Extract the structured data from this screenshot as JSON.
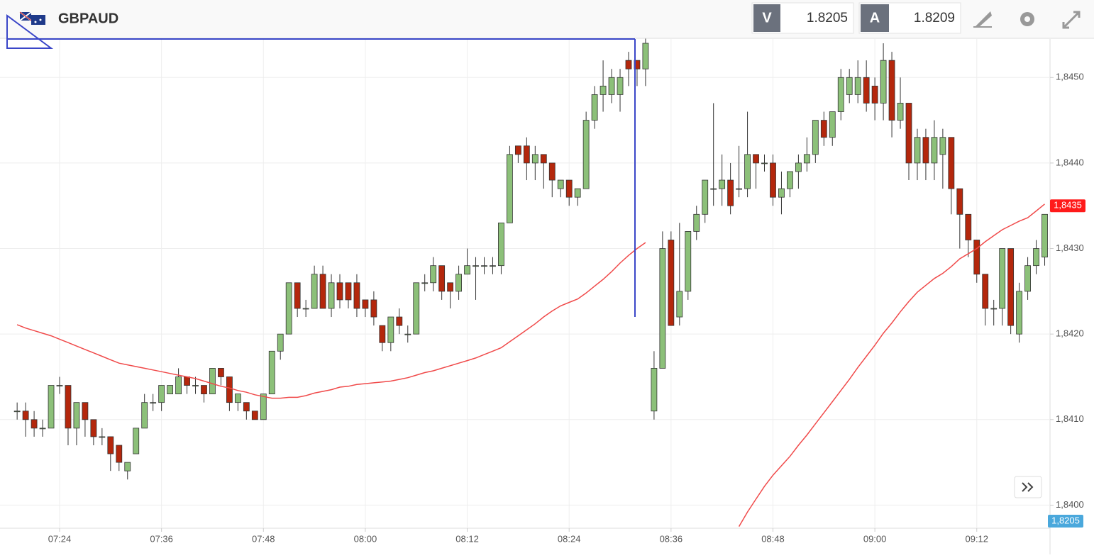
{
  "header": {
    "symbol": "GBPAUD",
    "bid_label": "V",
    "bid": 1.8205,
    "ask_label": "A",
    "ask": 1.8209
  },
  "chart_data": {
    "type": "candlestick",
    "categories": [
      null,
      null,
      null,
      null,
      null,
      "07:24",
      null,
      null,
      null,
      null,
      null,
      null,
      null,
      null,
      null,
      null,
      null,
      "07:36",
      null,
      null,
      null,
      null,
      null,
      null,
      null,
      null,
      null,
      null,
      null,
      "07:48",
      null,
      null,
      null,
      null,
      null,
      null,
      null,
      null,
      null,
      null,
      null,
      "08:00",
      null,
      null,
      null,
      null,
      null,
      null,
      null,
      null,
      null,
      null,
      null,
      "08:12",
      null,
      null,
      null,
      null,
      null,
      null,
      null,
      null,
      null,
      null,
      null,
      "08:24",
      null,
      null,
      null,
      null,
      null,
      null,
      null,
      null,
      null,
      null,
      null,
      "08:36",
      null,
      null,
      null,
      null,
      null,
      null,
      null,
      null,
      null,
      null,
      null,
      "08:48",
      null,
      null,
      null,
      null,
      null,
      null,
      null,
      null,
      null,
      null,
      null,
      "09:00",
      null,
      null,
      null,
      null,
      null,
      null,
      null,
      null,
      null,
      null,
      null,
      "09:12",
      null,
      null,
      null,
      null,
      null,
      null,
      null,
      null
    ],
    "open": [
      1.8411,
      1.8411,
      1.841,
      1.8409,
      1.8409,
      1.8414,
      1.8414,
      1.8409,
      1.8412,
      1.841,
      1.8408,
      1.8408,
      1.8407,
      1.8404,
      1.8406,
      1.8409,
      1.8412,
      1.8412,
      1.8413,
      1.8413,
      1.8415,
      1.8414,
      1.8414,
      1.8413,
      1.8416,
      1.8415,
      1.8412,
      1.8412,
      1.8411,
      1.841,
      1.8413,
      1.8418,
      1.842,
      1.8426,
      1.8423,
      1.8423,
      1.8427,
      1.8423,
      1.8426,
      1.8426,
      1.8426,
      1.8424,
      1.8424,
      1.8421,
      1.8419,
      1.8422,
      1.842,
      1.842,
      1.8426,
      1.8426,
      1.8428,
      1.8426,
      1.8425,
      1.8427,
      1.8428,
      1.8428,
      1.8428,
      1.8428,
      1.8433,
      1.8442,
      1.8442,
      1.844,
      1.8441,
      1.844,
      1.8437,
      1.8438,
      1.8436,
      1.8437,
      1.8445,
      1.8448,
      1.8448,
      1.8448,
      1.8452,
      1.8452,
      1.8451,
      1.8411,
      1.8416,
      1.8431,
      1.8422,
      1.8425,
      1.8432,
      1.8434,
      1.8437,
      1.8437,
      1.8438,
      1.8437,
      1.8437,
      1.8441,
      1.844,
      1.844,
      1.8436,
      1.8437,
      1.8439,
      1.844,
      1.8441,
      1.8445,
      1.8443,
      1.8446,
      1.8448,
      1.8448,
      1.845,
      1.8449,
      1.8447,
      1.8452,
      1.8445,
      1.8447,
      1.844,
      1.8443,
      1.844,
      1.8441,
      1.8443,
      1.8437,
      1.8434,
      1.8431,
      1.8427,
      1.8423,
      1.8423,
      1.843,
      1.842,
      1.8425,
      1.8428,
      1.8429
    ],
    "high": [
      1.8412,
      1.8412,
      1.8411,
      1.841,
      1.8414,
      1.8415,
      1.8414,
      1.8412,
      1.8412,
      1.841,
      1.8409,
      1.8408,
      1.8407,
      1.8405,
      1.8409,
      1.8413,
      1.8413,
      1.8414,
      1.8414,
      1.8416,
      1.8415,
      1.8415,
      1.8414,
      1.8416,
      1.8416,
      1.8415,
      1.8413,
      1.8412,
      1.8411,
      1.8413,
      1.8418,
      1.842,
      1.8426,
      1.8426,
      1.8424,
      1.8428,
      1.8428,
      1.8427,
      1.8427,
      1.8426,
      1.8427,
      1.8424,
      1.8425,
      1.8421,
      1.8422,
      1.8423,
      1.8421,
      1.8426,
      1.8427,
      1.8429,
      1.8428,
      1.8426,
      1.8428,
      1.843,
      1.8429,
      1.8429,
      1.8429,
      1.8433,
      1.8442,
      1.8442,
      1.8443,
      1.8442,
      1.8441,
      1.844,
      1.8438,
      1.8438,
      1.8437,
      1.8446,
      1.8449,
      1.8452,
      1.8451,
      1.8451,
      1.8453,
      1.8452,
      1.8455,
      1.8418,
      1.8432,
      1.8432,
      1.8433,
      1.8432,
      1.8435,
      1.8438,
      1.8447,
      1.8441,
      1.844,
      1.8442,
      1.8446,
      1.8441,
      1.8441,
      1.8441,
      1.8439,
      1.8439,
      1.8441,
      1.8443,
      1.8445,
      1.8446,
      1.8446,
      1.8451,
      1.8451,
      1.8452,
      1.8452,
      1.845,
      1.8454,
      1.8453,
      1.845,
      1.8447,
      1.8444,
      1.8444,
      1.8445,
      1.8444,
      1.8443,
      1.8437,
      1.8434,
      1.8431,
      1.8427,
      1.8424,
      1.843,
      1.843,
      1.8426,
      1.8429,
      1.8431,
      1.8434
    ],
    "low": [
      1.841,
      1.8408,
      1.8408,
      1.8408,
      1.8409,
      1.8413,
      1.8407,
      1.8407,
      1.8408,
      1.8407,
      1.8407,
      1.8404,
      1.8404,
      1.8403,
      1.8406,
      1.8409,
      1.8411,
      1.8411,
      1.8413,
      1.8413,
      1.8413,
      1.8413,
      1.8412,
      1.8413,
      1.8414,
      1.8411,
      1.8411,
      1.841,
      1.841,
      1.841,
      1.8413,
      1.8417,
      1.842,
      1.8422,
      1.8422,
      1.8423,
      1.8423,
      1.8422,
      1.8423,
      1.8423,
      1.8422,
      1.8422,
      1.8421,
      1.8418,
      1.8418,
      1.842,
      1.8419,
      1.842,
      1.8425,
      1.8425,
      1.8424,
      1.8423,
      1.8424,
      1.8427,
      1.8424,
      1.8427,
      1.8427,
      1.8427,
      1.8433,
      1.844,
      1.8438,
      1.8438,
      1.8437,
      1.8436,
      1.8436,
      1.8435,
      1.8435,
      1.8437,
      1.8444,
      1.8446,
      1.8447,
      1.8446,
      1.8449,
      1.8449,
      1.8449,
      1.841,
      1.8416,
      1.8421,
      1.8421,
      1.8424,
      1.8431,
      1.8433,
      1.8435,
      1.8435,
      1.8434,
      1.8436,
      1.8436,
      1.8437,
      1.8439,
      1.8435,
      1.8434,
      1.8436,
      1.8437,
      1.8439,
      1.844,
      1.8442,
      1.8442,
      1.8445,
      1.8447,
      1.8447,
      1.8446,
      1.8445,
      1.8445,
      1.8443,
      1.8444,
      1.8438,
      1.8438,
      1.8438,
      1.8438,
      1.8437,
      1.8434,
      1.843,
      1.8429,
      1.8426,
      1.8421,
      1.8421,
      1.8421,
      1.842,
      1.8419,
      1.8424,
      1.8427,
      1.8428
    ],
    "close": [
      1.8411,
      1.841,
      1.8409,
      1.8409,
      1.8414,
      1.8414,
      1.8409,
      1.8412,
      1.841,
      1.8408,
      1.8408,
      1.8406,
      1.8405,
      1.8405,
      1.8409,
      1.8412,
      1.8412,
      1.8414,
      1.8414,
      1.8415,
      1.8414,
      1.8414,
      1.8413,
      1.8416,
      1.8415,
      1.8412,
      1.8413,
      1.8411,
      1.841,
      1.8413,
      1.8418,
      1.842,
      1.8426,
      1.8423,
      1.8423,
      1.8427,
      1.8423,
      1.8426,
      1.8424,
      1.8424,
      1.8423,
      1.8423,
      1.8422,
      1.8419,
      1.8422,
      1.8421,
      1.842,
      1.8426,
      1.8426,
      1.8428,
      1.8425,
      1.8425,
      1.8427,
      1.8428,
      1.8428,
      1.8428,
      1.8428,
      1.8433,
      1.8441,
      1.8441,
      1.844,
      1.8441,
      1.844,
      1.8438,
      1.8438,
      1.8436,
      1.8437,
      1.8445,
      1.8448,
      1.8449,
      1.845,
      1.845,
      1.8451,
      1.8451,
      1.8454,
      1.8416,
      1.843,
      1.8421,
      1.8425,
      1.8432,
      1.8434,
      1.8438,
      1.8437,
      1.8438,
      1.8435,
      1.8437,
      1.8441,
      1.844,
      1.844,
      1.8436,
      1.8437,
      1.8439,
      1.844,
      1.8441,
      1.8445,
      1.8443,
      1.8446,
      1.845,
      1.845,
      1.845,
      1.8447,
      1.8447,
      1.8452,
      1.8445,
      1.8447,
      1.844,
      1.8443,
      1.844,
      1.8443,
      1.8443,
      1.8437,
      1.8434,
      1.8431,
      1.8427,
      1.8423,
      1.8423,
      1.843,
      1.8421,
      1.8425,
      1.8428,
      1.843,
      1.8434
    ],
    "up_color": "#8cc079",
    "down_color": "#b4270c",
    "ma": {
      "color": "#f04a4a",
      "values": [
        1.84211,
        1.84207,
        1.84204,
        1.84201,
        1.84198,
        1.84194,
        1.8419,
        1.84186,
        1.84182,
        1.84178,
        1.84174,
        1.8417,
        1.84166,
        1.84164,
        1.84162,
        1.8416,
        1.84158,
        1.84156,
        1.84154,
        1.84152,
        1.8415,
        1.84148,
        1.84145,
        1.84142,
        1.84139,
        1.84137,
        1.84134,
        1.84132,
        1.84129,
        1.84127,
        1.84125,
        1.84125,
        1.84126,
        1.84126,
        1.84128,
        1.84131,
        1.84133,
        1.84135,
        1.84138,
        1.84139,
        1.84141,
        1.84142,
        1.84143,
        1.84144,
        1.84145,
        1.84147,
        1.84149,
        1.84152,
        1.84155,
        1.84157,
        1.8416,
        1.84163,
        1.84166,
        1.84169,
        1.84172,
        1.84176,
        1.8418,
        1.84184,
        1.84191,
        1.84198,
        1.84205,
        1.84212,
        1.8422,
        1.84227,
        1.84233,
        1.84237,
        1.84241,
        1.84248,
        1.84256,
        1.84264,
        1.84273,
        1.84283,
        1.84292,
        1.843,
        1.84307,
        null,
        null,
        null,
        null,
        null,
        null,
        null,
        null,
        null,
        null,
        1.83975,
        1.83992,
        1.84007,
        1.84022,
        1.84035,
        1.84046,
        1.84057,
        1.8407,
        1.84082,
        1.84095,
        1.84108,
        1.84121,
        1.84134,
        1.84147,
        1.84161,
        1.84174,
        1.84187,
        1.84201,
        1.84213,
        1.84226,
        1.84238,
        1.84249,
        1.84257,
        1.84265,
        1.84271,
        1.84279,
        1.84288,
        1.84294,
        1.843,
        1.84308,
        1.84315,
        1.84322,
        1.84327,
        1.84332,
        1.84336,
        1.84344,
        1.84352
      ]
    },
    "ylim": [
      1.83973,
      1.84545
    ],
    "yticks": [
      {
        "value": 1.84,
        "label": "1,8400"
      },
      {
        "value": 1.841,
        "label": "1,8410"
      },
      {
        "value": 1.842,
        "label": "1,8420"
      },
      {
        "value": 1.843,
        "label": "1,8430"
      },
      {
        "value": 1.844,
        "label": "1,8440"
      },
      {
        "value": 1.845,
        "label": "1,8450"
      }
    ],
    "grid": true,
    "price_tag": {
      "value": 1.8435,
      "label": "1,8435",
      "color": "#ff1a1a"
    },
    "bid_tag": {
      "label": "1,8205",
      "color": "#4aa8dc"
    }
  }
}
